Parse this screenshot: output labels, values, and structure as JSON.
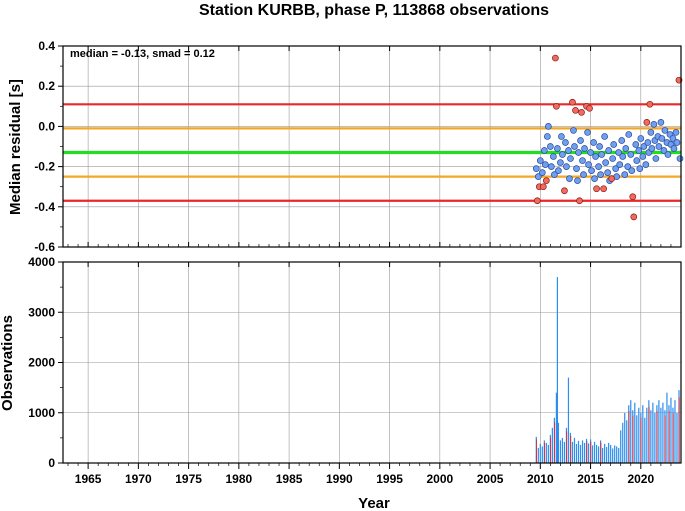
{
  "chart_data": [
    {
      "type": "scatter",
      "title": "Station KURBB, phase P, 113868 observations",
      "xlabel": "",
      "ylabel": "Median residual [s]",
      "annotation": "median = -0.13, smad = 0.12",
      "xlim": [
        1962.5,
        2024.0
      ],
      "ylim": [
        -0.6,
        0.4
      ],
      "yticks": [
        "0.4",
        "0.2",
        "0.0",
        "-0.2",
        "-0.4",
        "-0.6"
      ],
      "grid": true,
      "reference_lines": [
        {
          "y": 0.11,
          "color": "#e8282a"
        },
        {
          "y": -0.01,
          "color": "#f5a623"
        },
        {
          "y": -0.13,
          "color": "#22dd22"
        },
        {
          "y": -0.25,
          "color": "#f5a623"
        },
        {
          "y": -0.37,
          "color": "#e8282a"
        }
      ],
      "inlier_color": "#6fa0f0",
      "outlier_color": "#f06a60",
      "outliers": [
        {
          "x": 2009.7,
          "y": -0.37
        },
        {
          "x": 2009.9,
          "y": -0.3
        },
        {
          "x": 2010.3,
          "y": -0.3
        },
        {
          "x": 2010.6,
          "y": -0.27
        },
        {
          "x": 2011.5,
          "y": 0.34
        },
        {
          "x": 2011.6,
          "y": 0.1
        },
        {
          "x": 2012.4,
          "y": -0.32
        },
        {
          "x": 2013.2,
          "y": 0.12
        },
        {
          "x": 2013.5,
          "y": 0.08
        },
        {
          "x": 2013.9,
          "y": -0.37
        },
        {
          "x": 2014.1,
          "y": 0.07
        },
        {
          "x": 2014.6,
          "y": 0.1
        },
        {
          "x": 2014.9,
          "y": 0.09
        },
        {
          "x": 2015.6,
          "y": -0.31
        },
        {
          "x": 2016.3,
          "y": -0.31
        },
        {
          "x": 2017.1,
          "y": -0.26
        },
        {
          "x": 2019.2,
          "y": -0.35
        },
        {
          "x": 2019.3,
          "y": -0.45
        },
        {
          "x": 2020.6,
          "y": 0.02
        },
        {
          "x": 2020.9,
          "y": 0.11
        },
        {
          "x": 2023.8,
          "y": 0.23
        }
      ],
      "inliers": [
        {
          "x": 2009.6,
          "y": -0.21
        },
        {
          "x": 2009.8,
          "y": -0.25
        },
        {
          "x": 2010.0,
          "y": -0.17
        },
        {
          "x": 2010.2,
          "y": -0.23
        },
        {
          "x": 2010.4,
          "y": -0.12
        },
        {
          "x": 2010.5,
          "y": -0.19
        },
        {
          "x": 2010.7,
          "y": -0.05
        },
        {
          "x": 2010.8,
          "y": 0.0
        },
        {
          "x": 2011.0,
          "y": -0.1
        },
        {
          "x": 2011.1,
          "y": -0.2
        },
        {
          "x": 2011.3,
          "y": -0.15
        },
        {
          "x": 2011.4,
          "y": -0.24
        },
        {
          "x": 2011.7,
          "y": -0.11
        },
        {
          "x": 2011.8,
          "y": -0.22
        },
        {
          "x": 2012.0,
          "y": -0.18
        },
        {
          "x": 2012.1,
          "y": -0.05
        },
        {
          "x": 2012.2,
          "y": -0.14
        },
        {
          "x": 2012.5,
          "y": -0.08
        },
        {
          "x": 2012.6,
          "y": -0.2
        },
        {
          "x": 2012.8,
          "y": -0.12
        },
        {
          "x": 2012.9,
          "y": -0.26
        },
        {
          "x": 2013.0,
          "y": -0.16
        },
        {
          "x": 2013.3,
          "y": -0.02
        },
        {
          "x": 2013.4,
          "y": -0.1
        },
        {
          "x": 2013.6,
          "y": -0.21
        },
        {
          "x": 2013.7,
          "y": -0.27
        },
        {
          "x": 2013.8,
          "y": -0.13
        },
        {
          "x": 2014.0,
          "y": -0.07
        },
        {
          "x": 2014.2,
          "y": -0.17
        },
        {
          "x": 2014.3,
          "y": -0.24
        },
        {
          "x": 2014.4,
          "y": -0.11
        },
        {
          "x": 2014.7,
          "y": -0.03
        },
        {
          "x": 2014.8,
          "y": -0.19
        },
        {
          "x": 2015.0,
          "y": -0.13
        },
        {
          "x": 2015.1,
          "y": -0.22
        },
        {
          "x": 2015.3,
          "y": -0.08
        },
        {
          "x": 2015.4,
          "y": -0.26
        },
        {
          "x": 2015.5,
          "y": -0.15
        },
        {
          "x": 2015.8,
          "y": -0.2
        },
        {
          "x": 2015.9,
          "y": -0.1
        },
        {
          "x": 2016.0,
          "y": -0.24
        },
        {
          "x": 2016.1,
          "y": -0.14
        },
        {
          "x": 2016.4,
          "y": -0.05
        },
        {
          "x": 2016.5,
          "y": -0.18
        },
        {
          "x": 2016.7,
          "y": -0.23
        },
        {
          "x": 2016.8,
          "y": -0.12
        },
        {
          "x": 2016.9,
          "y": -0.27
        },
        {
          "x": 2017.2,
          "y": -0.16
        },
        {
          "x": 2017.3,
          "y": -0.09
        },
        {
          "x": 2017.5,
          "y": -0.21
        },
        {
          "x": 2017.6,
          "y": -0.25
        },
        {
          "x": 2017.8,
          "y": -0.13
        },
        {
          "x": 2017.9,
          "y": -0.19
        },
        {
          "x": 2018.1,
          "y": -0.07
        },
        {
          "x": 2018.2,
          "y": -0.15
        },
        {
          "x": 2018.4,
          "y": -0.24
        },
        {
          "x": 2018.5,
          "y": -0.11
        },
        {
          "x": 2018.7,
          "y": -0.2
        },
        {
          "x": 2018.8,
          "y": -0.04
        },
        {
          "x": 2019.0,
          "y": -0.14
        },
        {
          "x": 2019.1,
          "y": -0.22
        },
        {
          "x": 2019.5,
          "y": -0.09
        },
        {
          "x": 2019.6,
          "y": -0.17
        },
        {
          "x": 2019.8,
          "y": -0.12
        },
        {
          "x": 2019.9,
          "y": -0.21
        },
        {
          "x": 2020.0,
          "y": -0.06
        },
        {
          "x": 2020.2,
          "y": -0.15
        },
        {
          "x": 2020.3,
          "y": -0.1
        },
        {
          "x": 2020.5,
          "y": -0.19
        },
        {
          "x": 2020.7,
          "y": -0.08
        },
        {
          "x": 2020.8,
          "y": -0.13
        },
        {
          "x": 2021.0,
          "y": -0.03
        },
        {
          "x": 2021.1,
          "y": -0.11
        },
        {
          "x": 2021.3,
          "y": 0.01
        },
        {
          "x": 2021.4,
          "y": -0.07
        },
        {
          "x": 2021.5,
          "y": -0.16
        },
        {
          "x": 2021.7,
          "y": -0.05
        },
        {
          "x": 2021.8,
          "y": -0.1
        },
        {
          "x": 2022.0,
          "y": 0.02
        },
        {
          "x": 2022.1,
          "y": -0.06
        },
        {
          "x": 2022.3,
          "y": -0.12
        },
        {
          "x": 2022.4,
          "y": -0.02
        },
        {
          "x": 2022.6,
          "y": -0.08
        },
        {
          "x": 2022.7,
          "y": -0.14
        },
        {
          "x": 2022.9,
          "y": -0.04
        },
        {
          "x": 2023.0,
          "y": -0.09
        },
        {
          "x": 2023.2,
          "y": -0.06
        },
        {
          "x": 2023.3,
          "y": -0.11
        },
        {
          "x": 2023.5,
          "y": -0.03
        },
        {
          "x": 2023.6,
          "y": -0.08
        },
        {
          "x": 2023.9,
          "y": -0.16
        }
      ]
    },
    {
      "type": "bar",
      "title": "",
      "xlabel": "Year",
      "ylabel": "Observations",
      "xlim": [
        1962.5,
        2024.0
      ],
      "ylim": [
        0,
        4000
      ],
      "xticks": [
        "1965",
        "1970",
        "1975",
        "1980",
        "1985",
        "1990",
        "1995",
        "2000",
        "2005",
        "2010",
        "2015",
        "2020"
      ],
      "yticks": [
        "4000",
        "3000",
        "2000",
        "1000",
        "0"
      ],
      "grid": true,
      "bar_color": "#2c8ef0",
      "highlight_color": "#e8282a",
      "x": [
        2009.6,
        2009.8,
        2010.0,
        2010.2,
        2010.4,
        2010.6,
        2010.8,
        2011.0,
        2011.2,
        2011.4,
        2011.6,
        2011.7,
        2011.8,
        2012.0,
        2012.2,
        2012.4,
        2012.6,
        2012.8,
        2013.0,
        2013.2,
        2013.4,
        2013.6,
        2013.8,
        2014.0,
        2014.2,
        2014.4,
        2014.6,
        2014.8,
        2015.0,
        2015.2,
        2015.4,
        2015.6,
        2015.8,
        2016.0,
        2016.2,
        2016.4,
        2016.6,
        2016.8,
        2017.0,
        2017.2,
        2017.4,
        2017.6,
        2017.8,
        2018.0,
        2018.2,
        2018.4,
        2018.6,
        2018.8,
        2019.0,
        2019.2,
        2019.4,
        2019.6,
        2019.8,
        2020.0,
        2020.2,
        2020.4,
        2020.6,
        2020.8,
        2021.0,
        2021.2,
        2021.4,
        2021.6,
        2021.8,
        2022.0,
        2022.2,
        2022.4,
        2022.6,
        2022.8,
        2023.0,
        2023.2,
        2023.4,
        2023.6,
        2023.8
      ],
      "values": [
        520,
        300,
        380,
        330,
        450,
        400,
        360,
        560,
        700,
        900,
        1400,
        3700,
        800,
        450,
        500,
        420,
        700,
        1700,
        600,
        420,
        500,
        380,
        440,
        360,
        450,
        400,
        480,
        390,
        470,
        350,
        420,
        360,
        330,
        450,
        300,
        380,
        320,
        400,
        360,
        290,
        350,
        330,
        300,
        650,
        800,
        1000,
        850,
        1150,
        1250,
        1050,
        1200,
        950,
        1100,
        1000,
        1150,
        900,
        1100,
        1250,
        1050,
        1200,
        1000,
        1150,
        1250,
        1100,
        1200,
        1050,
        1400,
        1150,
        1300,
        1100,
        1250,
        1000,
        1450
      ],
      "highlight_x": [
        2009.6,
        2010.4,
        2011.0,
        2011.4,
        2012.6,
        2013.0,
        2014.6,
        2015.0,
        2016.0,
        2018.8,
        2019.2,
        2020.0,
        2020.8,
        2021.6,
        2022.4,
        2022.8,
        2023.2,
        2023.8
      ]
    }
  ]
}
